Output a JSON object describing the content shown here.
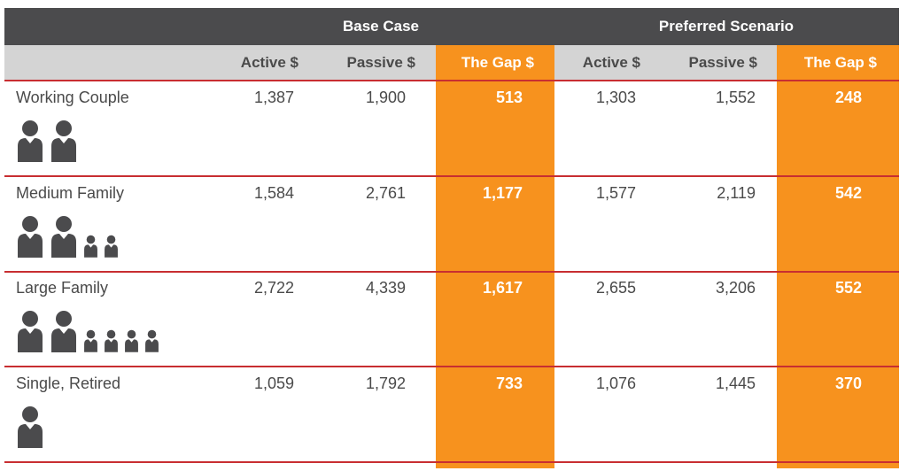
{
  "chart_data": {
    "type": "table",
    "groups": [
      "Base Case",
      "Preferred Scenario"
    ],
    "columns": [
      "Active $",
      "Passive $",
      "The Gap $",
      "Active $",
      "Passive $",
      "The Gap $"
    ],
    "rows": [
      {
        "label": "Working Couple",
        "adults": 2,
        "children": 0,
        "values": [
          "1,387",
          "1,900",
          "513",
          "1,303",
          "1,552",
          "248"
        ]
      },
      {
        "label": "Medium Family",
        "adults": 2,
        "children": 2,
        "values": [
          "1,584",
          "2,761",
          "1,177",
          "1,577",
          "2,119",
          "542"
        ]
      },
      {
        "label": "Large Family",
        "adults": 2,
        "children": 4,
        "values": [
          "2,722",
          "4,339",
          "1,617",
          "2,655",
          "3,206",
          "552"
        ]
      },
      {
        "label": "Single, Retired",
        "adults": 1,
        "children": 0,
        "values": [
          "1,059",
          "1,792",
          "733",
          "1,076",
          "1,445",
          "370"
        ]
      }
    ],
    "colors": {
      "header": "#4b4b4d",
      "subheader": "#d4d4d4",
      "gap": "#f7921e",
      "rule": "#c82e31",
      "icon": "#4b4b4d"
    }
  }
}
